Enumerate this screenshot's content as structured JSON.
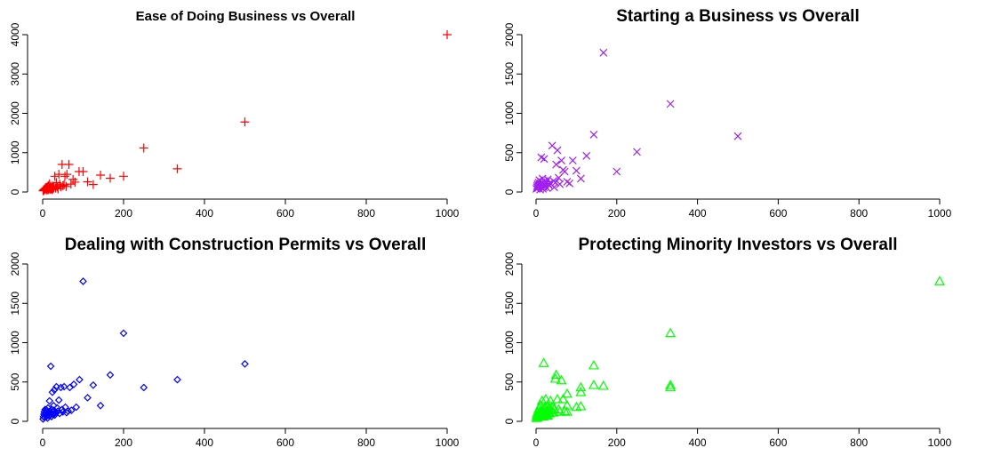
{
  "chart_data": [
    {
      "type": "scatter",
      "title": "Ease of Doing Business vs Overall",
      "title_style": "small",
      "xlabel": "",
      "ylabel": "",
      "xlim": [
        0,
        1000
      ],
      "ylim": [
        0,
        4000
      ],
      "xticks": [
        0,
        200,
        400,
        600,
        800,
        1000
      ],
      "yticks": [
        0,
        1000,
        2000,
        3000,
        4000
      ],
      "marker": "plus",
      "color": "#ff0000",
      "grid": false,
      "series": [
        {
          "x": [
            1,
            2,
            3,
            4,
            5,
            6,
            7,
            8,
            9,
            10,
            11,
            12,
            13,
            14,
            15,
            16,
            17,
            18,
            19,
            20,
            21,
            22,
            23,
            24,
            25,
            26,
            27,
            28,
            30,
            32,
            34,
            36,
            38,
            40,
            42,
            45,
            48,
            50,
            53,
            55,
            58,
            60,
            65,
            70,
            75,
            80,
            90,
            100,
            111,
            125,
            143,
            167,
            200,
            250,
            333,
            500,
            1000
          ],
          "y": [
            30,
            40,
            50,
            60,
            70,
            80,
            90,
            100,
            60,
            120,
            50,
            130,
            80,
            160,
            60,
            90,
            210,
            110,
            70,
            140,
            100,
            80,
            120,
            60,
            150,
            90,
            110,
            130,
            400,
            100,
            240,
            130,
            80,
            450,
            200,
            130,
            700,
            160,
            180,
            400,
            140,
            450,
            700,
            200,
            320,
            250,
            520,
            520,
            260,
            190,
            430,
            350,
            400,
            1120,
            590,
            1780,
            4000
          ]
        }
      ]
    },
    {
      "type": "scatter",
      "title": "Starting a Business vs Overall",
      "title_style": "big",
      "xlabel": "",
      "ylabel": "",
      "xlim": [
        0,
        1000
      ],
      "ylim": [
        0,
        2000
      ],
      "xticks": [
        0,
        200,
        400,
        600,
        800,
        1000
      ],
      "yticks": [
        0,
        500,
        1000,
        1500,
        2000
      ],
      "marker": "x",
      "color": "#a020f0",
      "grid": false,
      "series": [
        {
          "x": [
            1,
            2,
            3,
            4,
            5,
            6,
            7,
            8,
            9,
            10,
            11,
            12,
            13,
            14,
            15,
            16,
            17,
            18,
            19,
            20,
            21,
            22,
            23,
            25,
            27,
            29,
            31,
            33,
            36,
            40,
            43,
            45,
            48,
            50,
            53,
            56,
            59,
            63,
            67,
            71,
            77,
            83,
            91,
            100,
            111,
            125,
            143,
            167,
            200,
            250,
            333,
            500
          ],
          "y": [
            40,
            60,
            80,
            100,
            50,
            120,
            70,
            150,
            90,
            30,
            110,
            60,
            440,
            130,
            80,
            170,
            40,
            100,
            60,
            420,
            140,
            90,
            70,
            120,
            50,
            160,
            100,
            80,
            110,
            590,
            140,
            60,
            120,
            350,
            530,
            180,
            100,
            400,
            280,
            260,
            130,
            110,
            400,
            270,
            170,
            460,
            730,
            1770,
            260,
            510,
            1120,
            710
          ]
        }
      ]
    },
    {
      "type": "scatter",
      "title": "Dealing with Construction Permits vs Overall",
      "title_style": "big",
      "xlabel": "",
      "ylabel": "",
      "xlim": [
        0,
        1000
      ],
      "ylim": [
        0,
        2000
      ],
      "xticks": [
        0,
        200,
        400,
        600,
        800,
        1000
      ],
      "yticks": [
        0,
        500,
        1000,
        1500,
        2000
      ],
      "marker": "diamond",
      "color": "#0000ff",
      "grid": false,
      "series": [
        {
          "x": [
            1,
            2,
            3,
            4,
            5,
            6,
            7,
            8,
            9,
            10,
            11,
            12,
            13,
            14,
            15,
            16,
            17,
            18,
            19,
            20,
            21,
            22,
            23,
            24,
            25,
            26,
            27,
            28,
            29,
            30,
            32,
            34,
            36,
            38,
            40,
            42,
            45,
            48,
            50,
            53,
            56,
            59,
            63,
            67,
            71,
            77,
            83,
            91,
            100,
            111,
            125,
            143,
            167,
            200,
            250,
            333,
            500
          ],
          "y": [
            30,
            60,
            90,
            120,
            50,
            150,
            80,
            110,
            60,
            140,
            100,
            40,
            170,
            90,
            120,
            70,
            260,
            130,
            80,
            700,
            100,
            60,
            150,
            370,
            90,
            120,
            200,
            140,
            400,
            80,
            110,
            440,
            170,
            130,
            270,
            100,
            430,
            150,
            120,
            440,
            180,
            110,
            130,
            430,
            140,
            470,
            180,
            530,
            1780,
            300,
            460,
            200,
            590,
            1120,
            430,
            530,
            730
          ]
        }
      ]
    },
    {
      "type": "scatter",
      "title": "Protecting Minority Investors vs Overall",
      "title_style": "big",
      "xlabel": "",
      "ylabel": "",
      "xlim": [
        0,
        1000
      ],
      "ylim": [
        0,
        2000
      ],
      "xticks": [
        0,
        200,
        400,
        600,
        800,
        1000
      ],
      "yticks": [
        0,
        500,
        1000,
        1500,
        2000
      ],
      "marker": "triangle",
      "color": "#00ff00",
      "grid": false,
      "series": [
        {
          "x": [
            1,
            2,
            3,
            4,
            5,
            6,
            7,
            8,
            9,
            10,
            11,
            12,
            13,
            14,
            15,
            16,
            17,
            18,
            19,
            20,
            21,
            22,
            23,
            24,
            25,
            26,
            27,
            28,
            29,
            30,
            32,
            34,
            36,
            38,
            40,
            43,
            45,
            48,
            50,
            53,
            56,
            59,
            63,
            67,
            71,
            77,
            77,
            77,
            100,
            111,
            111,
            111,
            143,
            143,
            167,
            333,
            333,
            333,
            1000
          ],
          "y": [
            40,
            70,
            100,
            50,
            130,
            80,
            160,
            60,
            110,
            90,
            200,
            70,
            140,
            100,
            260,
            80,
            130,
            60,
            740,
            110,
            90,
            170,
            120,
            280,
            80,
            140,
            100,
            200,
            70,
            120,
            160,
            100,
            260,
            140,
            190,
            110,
            160,
            540,
            590,
            280,
            150,
            120,
            520,
            280,
            130,
            200,
            350,
            120,
            180,
            370,
            190,
            430,
            460,
            710,
            450,
            1120,
            460,
            430,
            1780
          ]
        }
      ]
    }
  ]
}
